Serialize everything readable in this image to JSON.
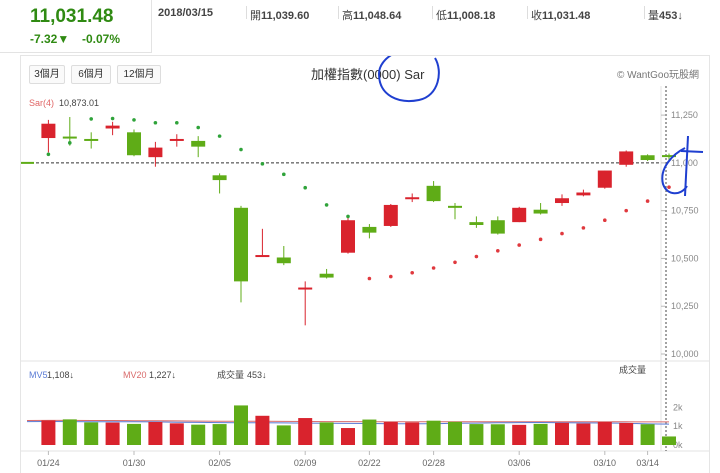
{
  "quote": {
    "price": "11,031.48",
    "change": "-7.32▼",
    "change_pct": "-0.07%",
    "date": "2018/03/15",
    "open_label": "開",
    "open": "11,039.60",
    "high_label": "高",
    "high": "11,048.64",
    "low_label": "低",
    "low": "11,008.18",
    "close_label": "收",
    "close": "11,031.48",
    "volume_label": "量",
    "volume": "453↓"
  },
  "toolbar": {
    "ranges": [
      "3個月",
      "6個月",
      "12個月"
    ],
    "title": "加權指數(0000) Sar",
    "credit": "© WantGoo玩股網"
  },
  "colors": {
    "up": "#d9232d",
    "down": "#5fac17",
    "sar": "#2fa33a",
    "sar_below": "#e0393e",
    "ma5": "#5b7bd5",
    "ma20": "#d96b6b"
  },
  "legend": {
    "sar_label": "Sar(4)",
    "sar_value": "10,873.01",
    "mv5_label": "MV5",
    "mv5_value": "1,108↓",
    "mv20_label": "MV20",
    "mv20_value": "1,227↓",
    "vol_label": "成交量",
    "vol_value": "453↓",
    "vol_panel_title": "成交量"
  },
  "chart_data": {
    "type": "candlestick",
    "y_ticks": [
      "11,250",
      "11,000",
      "10,750",
      "10,500",
      "10,250",
      "10,000"
    ],
    "y_tick_values": [
      11250,
      11000,
      10750,
      10500,
      10250,
      10000
    ],
    "ylim": [
      10000,
      11350
    ],
    "last_value_label": "11,000",
    "vol_ticks": [
      "2k",
      "1k",
      "0k"
    ],
    "vol_tick_values": [
      2000,
      1000,
      0
    ],
    "vol_max": 2600,
    "x_ticks": [
      {
        "index": 1,
        "label": "01/24"
      },
      {
        "index": 5,
        "label": "01/30"
      },
      {
        "index": 9,
        "label": "02/05"
      },
      {
        "index": 13,
        "label": "02/09"
      },
      {
        "index": 16,
        "label": "02/22"
      },
      {
        "index": 19,
        "label": "02/28"
      },
      {
        "index": 23,
        "label": "03/06"
      },
      {
        "index": 27,
        "label": "03/10"
      },
      {
        "index": 29,
        "label": "03/14"
      }
    ],
    "candles": [
      {
        "o": 11000,
        "c": 11000,
        "h": 11002,
        "l": 10998,
        "v": 0
      },
      {
        "o": 11130,
        "c": 11205,
        "h": 11225,
        "l": 11055,
        "v": 1300
      },
      {
        "o": 11135,
        "c": 11130,
        "h": 11240,
        "l": 11090,
        "v": 1360
      },
      {
        "o": 11125,
        "c": 11115,
        "h": 11160,
        "l": 11075,
        "v": 1200
      },
      {
        "o": 11180,
        "c": 11195,
        "h": 11215,
        "l": 11145,
        "v": 1190
      },
      {
        "o": 11160,
        "c": 11040,
        "h": 11175,
        "l": 11035,
        "v": 1120
      },
      {
        "o": 11030,
        "c": 11080,
        "h": 11110,
        "l": 10980,
        "v": 1220
      },
      {
        "o": 11115,
        "c": 11125,
        "h": 11150,
        "l": 11085,
        "v": 1150
      },
      {
        "o": 11115,
        "c": 11085,
        "h": 11140,
        "l": 11030,
        "v": 1080
      },
      {
        "o": 10935,
        "c": 10910,
        "h": 10945,
        "l": 10840,
        "v": 1110
      },
      {
        "o": 10765,
        "c": 10380,
        "h": 10775,
        "l": 10270,
        "v": 2100
      },
      {
        "o": 10510,
        "c": 10515,
        "h": 10655,
        "l": 10510,
        "v": 1550
      },
      {
        "o": 10505,
        "c": 10475,
        "h": 10565,
        "l": 10465,
        "v": 1040
      },
      {
        "o": 10340,
        "c": 10345,
        "h": 10380,
        "l": 10150,
        "v": 1430
      },
      {
        "o": 10420,
        "c": 10400,
        "h": 10445,
        "l": 10395,
        "v": 1200
      },
      {
        "o": 10530,
        "c": 10700,
        "h": 10720,
        "l": 10525,
        "v": 900
      },
      {
        "o": 10665,
        "c": 10635,
        "h": 10680,
        "l": 10605,
        "v": 1350
      },
      {
        "o": 10670,
        "c": 10780,
        "h": 10785,
        "l": 10665,
        "v": 1220
      },
      {
        "o": 10810,
        "c": 10820,
        "h": 10840,
        "l": 10795,
        "v": 1200
      },
      {
        "o": 10880,
        "c": 10800,
        "h": 10905,
        "l": 10795,
        "v": 1290
      },
      {
        "o": 10770,
        "c": 10770,
        "h": 10790,
        "l": 10705,
        "v": 1230
      },
      {
        "o": 10690,
        "c": 10675,
        "h": 10720,
        "l": 10660,
        "v": 1110
      },
      {
        "o": 10700,
        "c": 10630,
        "h": 10720,
        "l": 10625,
        "v": 1100
      },
      {
        "o": 10690,
        "c": 10765,
        "h": 10770,
        "l": 10690,
        "v": 1070
      },
      {
        "o": 10755,
        "c": 10735,
        "h": 10790,
        "l": 10730,
        "v": 1120
      },
      {
        "o": 10790,
        "c": 10815,
        "h": 10835,
        "l": 10775,
        "v": 1180
      },
      {
        "o": 10830,
        "c": 10845,
        "h": 10860,
        "l": 10825,
        "v": 1140
      },
      {
        "o": 10870,
        "c": 10960,
        "h": 10960,
        "l": 10865,
        "v": 1220
      },
      {
        "o": 10990,
        "c": 11060,
        "h": 11065,
        "l": 10980,
        "v": 1170
      },
      {
        "o": 11040,
        "c": 11015,
        "h": 11045,
        "l": 11010,
        "v": 1100
      },
      {
        "o": 11040,
        "c": 11031,
        "h": 11049,
        "l": 11008,
        "v": 453
      }
    ],
    "sar": [
      {
        "i": 1,
        "v": 11045,
        "pos": "above"
      },
      {
        "i": 2,
        "v": 11105,
        "pos": "above"
      },
      {
        "i": 3,
        "v": 11230,
        "pos": "above"
      },
      {
        "i": 4,
        "v": 11232,
        "pos": "above"
      },
      {
        "i": 5,
        "v": 11225,
        "pos": "above"
      },
      {
        "i": 6,
        "v": 11210,
        "pos": "above"
      },
      {
        "i": 7,
        "v": 11210,
        "pos": "above"
      },
      {
        "i": 8,
        "v": 11185,
        "pos": "above"
      },
      {
        "i": 9,
        "v": 11140,
        "pos": "above"
      },
      {
        "i": 10,
        "v": 11070,
        "pos": "above"
      },
      {
        "i": 11,
        "v": 10995,
        "pos": "above"
      },
      {
        "i": 12,
        "v": 10940,
        "pos": "above"
      },
      {
        "i": 13,
        "v": 10870,
        "pos": "above"
      },
      {
        "i": 14,
        "v": 10780,
        "pos": "above"
      },
      {
        "i": 15,
        "v": 10720,
        "pos": "above"
      },
      {
        "i": 16,
        "v": 10395,
        "pos": "below"
      },
      {
        "i": 17,
        "v": 10405,
        "pos": "below"
      },
      {
        "i": 18,
        "v": 10425,
        "pos": "below"
      },
      {
        "i": 19,
        "v": 10450,
        "pos": "below"
      },
      {
        "i": 20,
        "v": 10480,
        "pos": "below"
      },
      {
        "i": 21,
        "v": 10510,
        "pos": "below"
      },
      {
        "i": 22,
        "v": 10540,
        "pos": "below"
      },
      {
        "i": 23,
        "v": 10570,
        "pos": "below"
      },
      {
        "i": 24,
        "v": 10600,
        "pos": "below"
      },
      {
        "i": 25,
        "v": 10630,
        "pos": "below"
      },
      {
        "i": 26,
        "v": 10660,
        "pos": "below"
      },
      {
        "i": 27,
        "v": 10700,
        "pos": "below"
      },
      {
        "i": 28,
        "v": 10750,
        "pos": "below"
      },
      {
        "i": 29,
        "v": 10800,
        "pos": "below"
      },
      {
        "i": 30,
        "v": 10873,
        "pos": "below"
      }
    ],
    "ma5": [
      1240,
      1245,
      1240,
      1235,
      1230,
      1230,
      1225,
      1210,
      1200,
      1190,
      1185,
      1180,
      1170,
      1160,
      1150,
      1145,
      1140,
      1130,
      1130,
      1130,
      1150,
      1160,
      1180,
      1190,
      1195,
      1185,
      1175,
      1165,
      1150,
      1120,
      1108
    ],
    "ma20": [
      1300,
      1305,
      1305,
      1300,
      1300,
      1290,
      1285,
      1280,
      1270,
      1260,
      1260,
      1255,
      1250,
      1245,
      1240,
      1240,
      1235,
      1235,
      1235,
      1235,
      1235,
      1235,
      1235,
      1235,
      1235,
      1235,
      1235,
      1232,
      1230,
      1228,
      1227
    ]
  }
}
